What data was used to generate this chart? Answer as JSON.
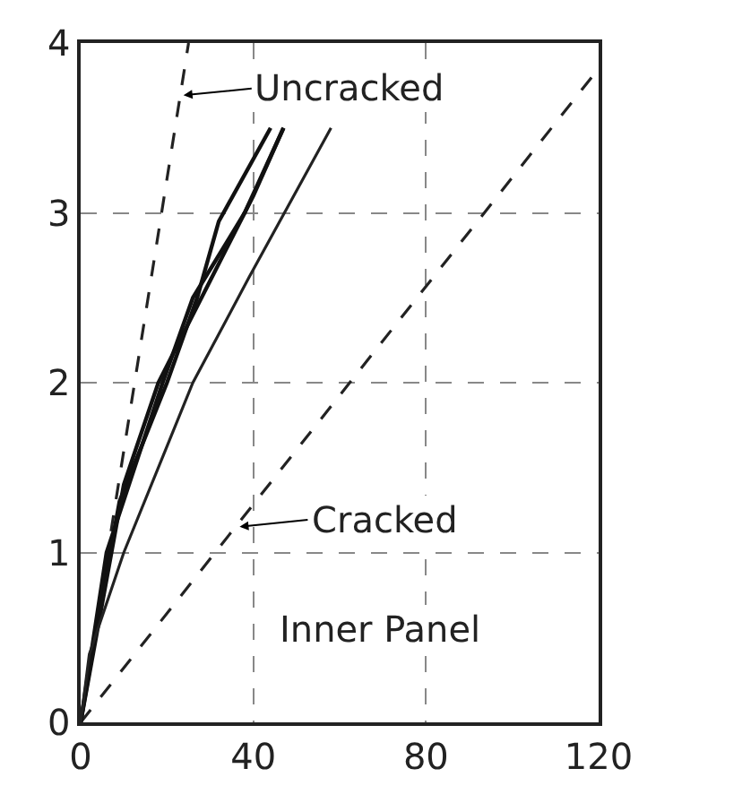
{
  "chart_data": {
    "type": "line",
    "xlim": [
      0,
      120
    ],
    "ylim": [
      0,
      4
    ],
    "xticks": [
      0,
      40,
      80,
      120
    ],
    "yticks": [
      0,
      1,
      2,
      3,
      4
    ],
    "grid": true,
    "marker": "none",
    "series": [
      {
        "color": "#222222",
        "line_style": "dashed",
        "x": [
          0,
          25
        ],
        "values": [
          0,
          4
        ]
      },
      {
        "color": "#222222",
        "line_style": "dashed",
        "x": [
          0,
          120
        ],
        "values": [
          0,
          3.85
        ]
      },
      {
        "color": "#111111",
        "line_style": "solid",
        "x": [
          0,
          4,
          9,
          20,
          27,
          32,
          44
        ],
        "values": [
          0,
          0.6,
          1.3,
          2,
          2.5,
          2.95,
          3.5
        ]
      },
      {
        "color": "#111111",
        "line_style": "solid",
        "x": [
          0,
          6,
          19,
          26,
          38,
          47
        ],
        "values": [
          0,
          1,
          2,
          2.5,
          3,
          3.5
        ]
      },
      {
        "color": "#111111",
        "line_style": "solid",
        "x": [
          47,
          40,
          30,
          18,
          10,
          0
        ],
        "values": [
          3.5,
          3.1,
          2.6,
          2,
          1.4,
          0
        ]
      },
      {
        "color": "#222222",
        "line_style": "solid",
        "x": [
          0,
          2,
          10,
          26,
          39,
          58
        ],
        "values": [
          0,
          0.4,
          1,
          2,
          2.62,
          3.5
        ]
      }
    ],
    "annotations": [
      {
        "text": "Uncracked",
        "x": 23,
        "y": 3.69
      },
      {
        "text": "Cracked",
        "x": 36,
        "y": 1.15
      },
      "Inner Panel"
    ]
  }
}
